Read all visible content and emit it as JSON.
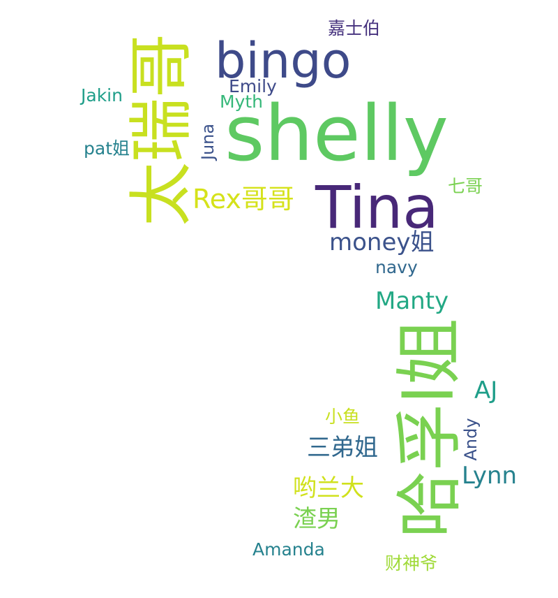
{
  "words": {
    "w_shelly": {
      "text": "shelly",
      "color": "#5ec962"
    },
    "w_tina": {
      "text": "Tina",
      "color": "#482878"
    },
    "w_bingo": {
      "text": "bingo",
      "color": "#3e4a89"
    },
    "w_haru": {
      "text": "哈孚l姐",
      "color": "#7ad151"
    },
    "w_talige": {
      "text": "太瑞哥",
      "color": "#c8e020"
    },
    "w_rex": {
      "text": "Rex哥哥",
      "color": "#d5e21a"
    },
    "w_money": {
      "text": "money姐",
      "color": "#3b528b"
    },
    "w_manty": {
      "text": "Manty",
      "color": "#22a884"
    },
    "w_sandi": {
      "text": "三弟姐",
      "color": "#31688e"
    },
    "w_youlan": {
      "text": "哟兰大",
      "color": "#d0e11c"
    },
    "w_zhanan": {
      "text": "渣男",
      "color": "#7ad151"
    },
    "w_aj": {
      "text": "AJ",
      "color": "#1f9e89"
    },
    "w_lynn": {
      "text": "Lynn",
      "color": "#26828e"
    },
    "w_emily": {
      "text": "Emily",
      "color": "#3e4a89"
    },
    "w_myth": {
      "text": "Myth",
      "color": "#35b779"
    },
    "w_jakin": {
      "text": "Jakin",
      "color": "#1f9e89"
    },
    "w_pat": {
      "text": "pat姐",
      "color": "#26828e"
    },
    "w_juna": {
      "text": "Juna",
      "color": "#3b528b"
    },
    "w_jiashibo": {
      "text": "嘉士伯",
      "color": "#46327e"
    },
    "w_qige": {
      "text": "七哥",
      "color": "#7ad151"
    },
    "w_navy": {
      "text": "navy",
      "color": "#31688e"
    },
    "w_xiaoyu": {
      "text": "小鱼",
      "color": "#c8e020"
    },
    "w_andy": {
      "text": "Andy",
      "color": "#3b528b"
    },
    "w_amanda": {
      "text": "Amanda",
      "color": "#26828e"
    },
    "w_caishen": {
      "text": "财神爷",
      "color": "#a0da39"
    }
  }
}
